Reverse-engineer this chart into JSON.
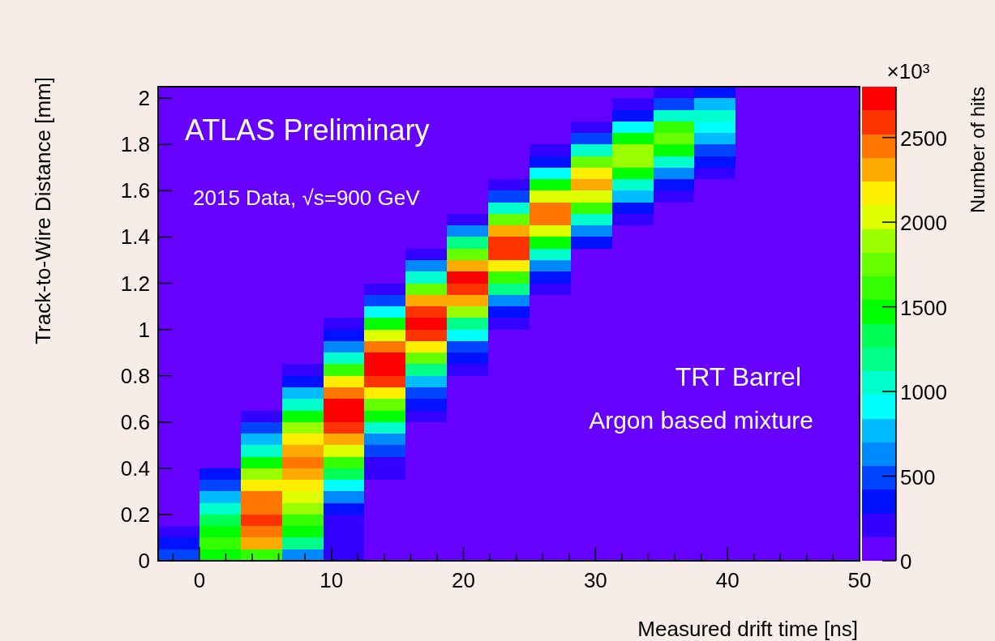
{
  "chart_data": {
    "type": "heatmap",
    "xlabel": "Measured drift time [ns]",
    "ylabel": "Track-to-Wire Distance [mm]",
    "clabel": "Number of hits",
    "annotations": [
      "ATLAS Preliminary",
      "2015 Data, √s=900 GeV",
      "TRT Barrel",
      "Argon based mixture",
      "×10³"
    ],
    "xlim": [
      -3.125,
      50
    ],
    "xticks": [
      {
        "value": -2,
        "label": null
      },
      0,
      {
        "value": 2,
        "label": null
      },
      {
        "value": 4,
        "label": null
      },
      {
        "value": 6,
        "label": null
      },
      {
        "value": 8,
        "label": null
      },
      10,
      {
        "value": 12,
        "label": null
      },
      {
        "value": 14,
        "label": null
      },
      {
        "value": 16,
        "label": null
      },
      {
        "value": 18,
        "label": null
      },
      20,
      {
        "value": 22,
        "label": null
      },
      {
        "value": 24,
        "label": null
      },
      {
        "value": 26,
        "label": null
      },
      {
        "value": 28,
        "label": null
      },
      30,
      {
        "value": 32,
        "label": null
      },
      {
        "value": 34,
        "label": null
      },
      {
        "value": 36,
        "label": null
      },
      {
        "value": 38,
        "label": null
      },
      40,
      {
        "value": 42,
        "label": null
      },
      {
        "value": 44,
        "label": null
      },
      {
        "value": 46,
        "label": null
      },
      {
        "value": 48,
        "label": null
      },
      50
    ],
    "ylim": [
      0,
      2.05
    ],
    "yticks": [
      0,
      0.2,
      0.4,
      0.6,
      0.8,
      1,
      1.2,
      1.4,
      1.6,
      1.8,
      2
    ],
    "clim": [
      0,
      2800
    ],
    "cticks": [
      0,
      500,
      1000,
      1500,
      2000,
      2500
    ],
    "colors": [
      "#6600ff",
      "#3300ff",
      "#0011ff",
      "#0044ff",
      "#0088ff",
      "#00bbff",
      "#00ffff",
      "#00ffcc",
      "#00ff88",
      "#00ff55",
      "#00ff00",
      "#33ff00",
      "#66ff00",
      "#99ff00",
      "#ddff00",
      "#ffee00",
      "#ffaa00",
      "#ff7700",
      "#ff3300",
      "#ff0000"
    ],
    "x": [
      -1.5625,
      1.5625,
      4.6875,
      7.8125,
      10.9375,
      14.0625,
      17.1875,
      20.3125,
      23.4375,
      26.5625,
      29.6875,
      32.8125,
      35.9375,
      39.0625
    ],
    "y": [
      2.025,
      1.975,
      1.925,
      1.875,
      1.825,
      1.775,
      1.725,
      1.675,
      1.625,
      1.575,
      1.525,
      1.475,
      1.425,
      1.375,
      1.325,
      1.275,
      1.225,
      1.175,
      1.125,
      1.075,
      1.025,
      0.975,
      0.925,
      0.875,
      0.825,
      0.775,
      0.725,
      0.675,
      0.625,
      0.575,
      0.525,
      0.475,
      0.425,
      0.375,
      0.325,
      0.275,
      0.225,
      0.175,
      0.125,
      0.075,
      0.025
    ],
    "cells": [
      [
        null,
        null,
        null,
        null,
        null,
        null,
        null,
        null,
        null,
        null,
        null,
        null,
        140,
        280
      ],
      [
        null,
        null,
        null,
        null,
        null,
        null,
        null,
        null,
        null,
        null,
        null,
        140,
        420,
        700
      ],
      [
        null,
        null,
        null,
        null,
        null,
        null,
        null,
        null,
        null,
        null,
        null,
        280,
        980,
        980
      ],
      [
        null,
        null,
        null,
        null,
        null,
        null,
        null,
        null,
        null,
        null,
        140,
        840,
        1540,
        840
      ],
      [
        null,
        null,
        null,
        null,
        null,
        null,
        null,
        null,
        null,
        null,
        420,
        1400,
        1680,
        700
      ],
      [
        null,
        null,
        null,
        null,
        null,
        null,
        null,
        null,
        null,
        140,
        980,
        1820,
        1400,
        420
      ],
      [
        null,
        null,
        null,
        null,
        null,
        null,
        null,
        null,
        null,
        280,
        1680,
        1820,
        980,
        280
      ],
      [
        null,
        null,
        null,
        null,
        null,
        null,
        null,
        null,
        null,
        840,
        2100,
        1400,
        560,
        140
      ],
      [
        null,
        null,
        null,
        null,
        null,
        null,
        null,
        null,
        140,
        1400,
        2240,
        980,
        280,
        null
      ],
      [
        null,
        null,
        null,
        null,
        null,
        null,
        null,
        null,
        420,
        1960,
        1960,
        700,
        140,
        null
      ],
      [
        null,
        null,
        null,
        null,
        null,
        null,
        null,
        null,
        980,
        2380,
        1540,
        280,
        null,
        null
      ],
      [
        null,
        null,
        null,
        null,
        null,
        null,
        null,
        140,
        1680,
        2380,
        980,
        140,
        null,
        null
      ],
      [
        null,
        null,
        null,
        null,
        null,
        null,
        null,
        560,
        2240,
        1960,
        560,
        null,
        null,
        null
      ],
      [
        null,
        null,
        null,
        null,
        null,
        null,
        null,
        1120,
        2520,
        1400,
        280,
        null,
        null,
        null
      ],
      [
        null,
        null,
        null,
        null,
        null,
        null,
        140,
        1680,
        2520,
        980,
        null,
        null,
        null,
        null
      ],
      [
        null,
        null,
        null,
        null,
        null,
        null,
        560,
        2240,
        2100,
        560,
        null,
        null,
        null,
        null
      ],
      [
        null,
        null,
        null,
        null,
        null,
        null,
        980,
        2660,
        1540,
        280,
        null,
        null,
        null,
        null
      ],
      [
        null,
        null,
        null,
        null,
        null,
        140,
        1680,
        2520,
        1120,
        140,
        null,
        null,
        null,
        null
      ],
      [
        null,
        null,
        null,
        null,
        null,
        420,
        2240,
        2240,
        560,
        null,
        null,
        null,
        null,
        null
      ],
      [
        null,
        null,
        null,
        null,
        null,
        840,
        2520,
        1820,
        280,
        null,
        null,
        null,
        null,
        null
      ],
      [
        null,
        null,
        null,
        null,
        140,
        1400,
        2660,
        1120,
        140,
        null,
        null,
        null,
        null,
        null
      ],
      [
        null,
        null,
        null,
        null,
        280,
        1960,
        2520,
        840,
        null,
        null,
        null,
        null,
        null,
        null
      ],
      [
        null,
        null,
        null,
        null,
        560,
        2380,
        2100,
        420,
        null,
        null,
        null,
        null,
        null,
        null
      ],
      [
        null,
        null,
        null,
        null,
        980,
        2660,
        1680,
        280,
        null,
        null,
        null,
        null,
        null,
        null
      ],
      [
        null,
        null,
        null,
        140,
        1540,
        2660,
        1120,
        140,
        null,
        null,
        null,
        null,
        null,
        null
      ],
      [
        null,
        null,
        null,
        280,
        2100,
        2520,
        700,
        null,
        null,
        null,
        null,
        null,
        null,
        null
      ],
      [
        null,
        null,
        null,
        700,
        2380,
        2100,
        420,
        null,
        null,
        null,
        null,
        null,
        null,
        null
      ],
      [
        null,
        null,
        null,
        980,
        2660,
        1680,
        280,
        null,
        null,
        null,
        null,
        null,
        null,
        null
      ],
      [
        null,
        null,
        140,
        1400,
        2660,
        1400,
        140,
        null,
        null,
        null,
        null,
        null,
        null,
        null
      ],
      [
        null,
        null,
        420,
        1820,
        2520,
        980,
        null,
        null,
        null,
        null,
        null,
        null,
        null,
        null
      ],
      [
        null,
        null,
        700,
        2100,
        2240,
        560,
        null,
        null,
        null,
        null,
        null,
        null,
        null,
        null
      ],
      [
        null,
        null,
        980,
        2240,
        1960,
        420,
        null,
        null,
        null,
        null,
        null,
        null,
        null,
        null
      ],
      [
        null,
        null,
        1400,
        2380,
        1540,
        140,
        null,
        null,
        null,
        null,
        null,
        null,
        null,
        null
      ],
      [
        null,
        280,
        1820,
        2240,
        1260,
        140,
        null,
        null,
        null,
        null,
        null,
        null,
        null,
        null
      ],
      [
        null,
        420,
        2100,
        2100,
        840,
        null,
        null,
        null,
        null,
        null,
        null,
        null,
        null,
        null
      ],
      [
        null,
        700,
        2380,
        1960,
        560,
        null,
        null,
        null,
        null,
        null,
        null,
        null,
        null,
        null
      ],
      [
        null,
        980,
        2380,
        1820,
        280,
        null,
        null,
        null,
        null,
        null,
        null,
        null,
        null,
        null
      ],
      [
        null,
        1260,
        2520,
        1540,
        140,
        null,
        null,
        null,
        null,
        null,
        null,
        null,
        null,
        null
      ],
      [
        140,
        1400,
        2380,
        1400,
        140,
        null,
        null,
        null,
        null,
        null,
        null,
        null,
        null,
        null
      ],
      [
        280,
        1540,
        2240,
        1120,
        140,
        null,
        null,
        null,
        null,
        null,
        null,
        null,
        null,
        null
      ],
      [
        420,
        1400,
        1540,
        560,
        140,
        null,
        null,
        null,
        null,
        null,
        null,
        null,
        null,
        null
      ]
    ]
  }
}
